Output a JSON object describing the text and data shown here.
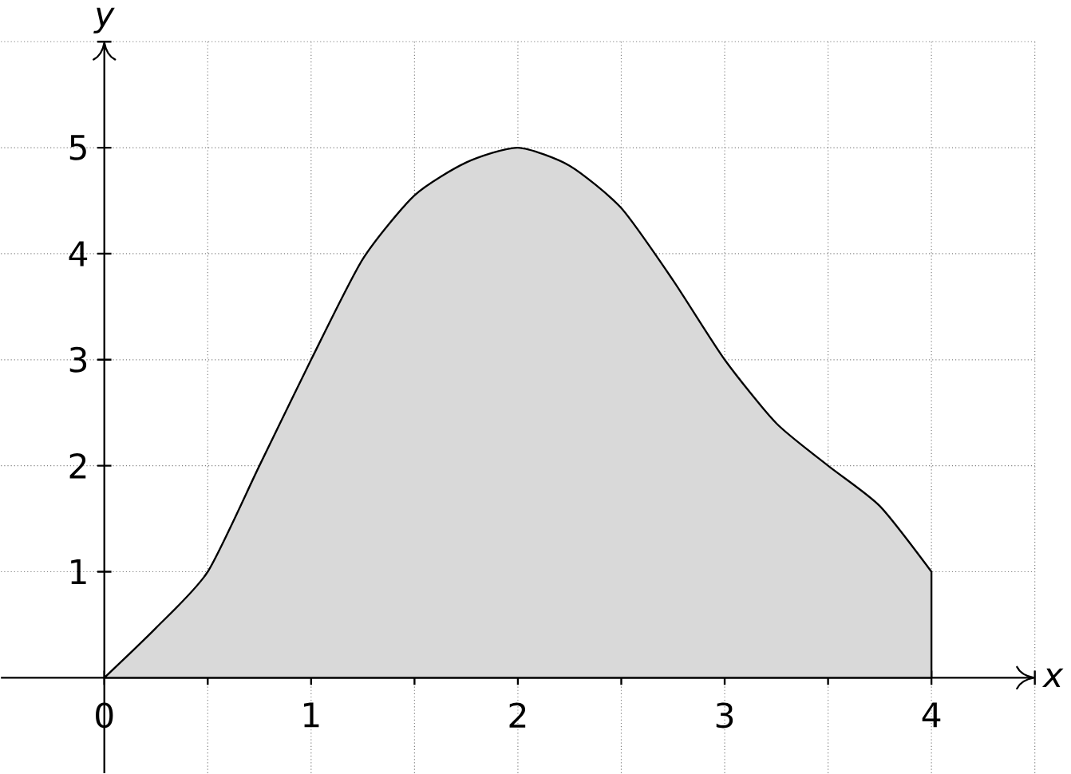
{
  "chart_data": {
    "type": "area",
    "xlabel": "x",
    "ylabel": "y",
    "x": [
      0,
      0.25,
      0.5,
      0.75,
      1,
      1.25,
      1.5,
      1.75,
      2,
      2.25,
      2.5,
      2.75,
      3,
      3.25,
      3.5,
      3.75,
      4
    ],
    "series": [
      {
        "color": "#d9d9d9",
        "values": [
          0,
          0.47,
          1,
          2,
          3,
          3.95,
          4.55,
          4.86,
          5,
          4.83,
          4.43,
          3.75,
          3,
          2.4,
          2,
          1.62,
          1
        ]
      }
    ],
    "xlim": [
      -0.5,
      4.5
    ],
    "ylim": [
      -0.9,
      6
    ],
    "xticks": [
      0,
      {
        "value": 0.5,
        "label": null
      },
      1,
      {
        "value": 1.5,
        "label": null
      },
      2,
      {
        "value": 2.5,
        "label": null
      },
      3,
      {
        "value": 3.5,
        "label": null
      },
      4,
      {
        "value": 4.5,
        "label": null
      }
    ],
    "yticks": [
      1,
      2,
      3,
      4,
      5,
      {
        "value": 6,
        "label": null
      }
    ],
    "grid": true
  }
}
